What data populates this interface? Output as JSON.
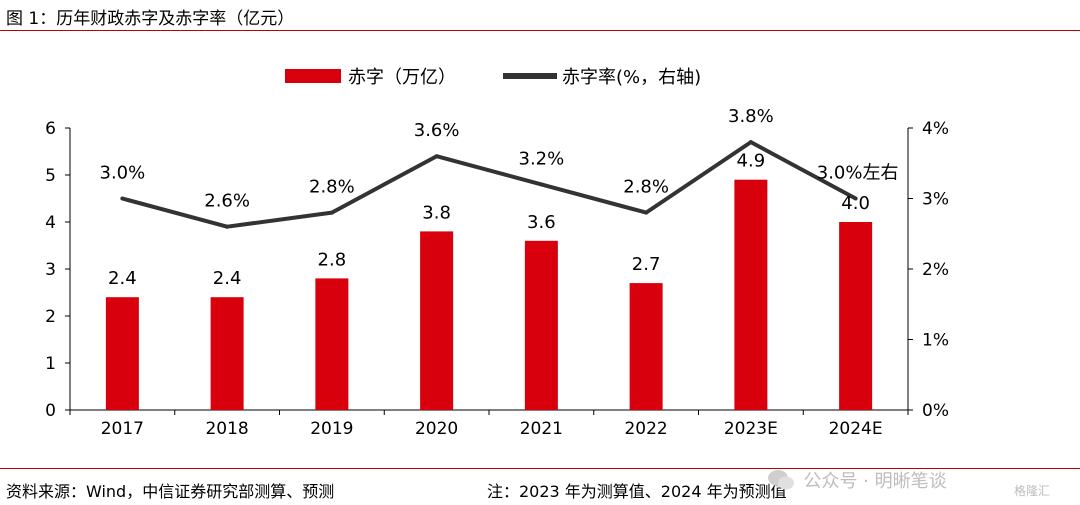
{
  "figure_title": "图 1：历年财政赤字及赤字率（亿元）",
  "source_text": "资料来源：Wind，中信证券研究部测算、预测",
  "note_text": "注：2023 年为测算值、2024 年为预测值",
  "watermark_text": "公众号 · 明晰笔谈",
  "watermark2_text": "格隆汇",
  "colors": {
    "bar": "#d9000d",
    "line": "#333333",
    "rule": "#c00000"
  },
  "chart_data": {
    "type": "bar",
    "categories": [
      "2017",
      "2018",
      "2019",
      "2020",
      "2021",
      "2022",
      "2023E",
      "2024E"
    ],
    "series": [
      {
        "name": "赤字（万亿）",
        "type": "bar",
        "axis": "left",
        "values": [
          2.4,
          2.4,
          2.8,
          3.8,
          3.6,
          2.7,
          4.9,
          4.0
        ],
        "labels": [
          "2.4",
          "2.4",
          "2.8",
          "3.8",
          "3.6",
          "2.7",
          "4.9",
          "4.0"
        ]
      },
      {
        "name": "赤字率(%，右轴)",
        "type": "line",
        "axis": "right",
        "values": [
          3.0,
          2.6,
          2.8,
          3.6,
          3.2,
          2.8,
          3.8,
          3.0
        ],
        "labels": [
          "3.0%",
          "2.6%",
          "2.8%",
          "3.6%",
          "3.2%",
          "2.8%",
          "3.8%",
          "3.0%左右"
        ]
      }
    ],
    "y_left": {
      "ylim": [
        0,
        6
      ],
      "ticks": [
        "0",
        "1",
        "2",
        "3",
        "4",
        "5",
        "6"
      ]
    },
    "y_right": {
      "ylim": [
        0,
        4
      ],
      "ticks": [
        "0%",
        "1%",
        "2%",
        "3%",
        "4%"
      ]
    },
    "legend": "top-center",
    "grid": false
  }
}
